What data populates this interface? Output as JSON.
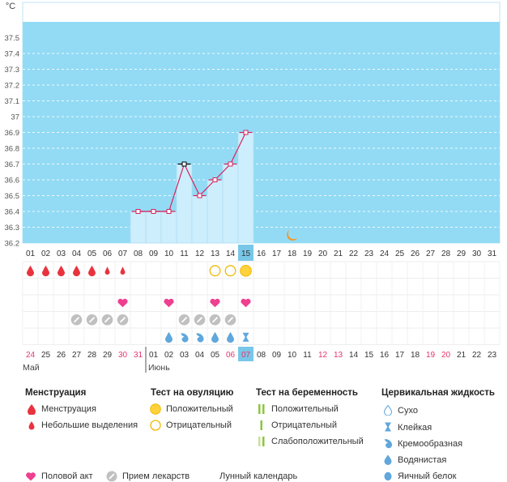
{
  "chart": {
    "unit_label": "°C",
    "y_ticks": [
      "37.5",
      "37.4",
      "37.3",
      "37.2",
      "37.1",
      "37",
      "36.9",
      "36.8",
      "36.7",
      "36.6",
      "36.5",
      "36.4",
      "36.3",
      "36.2"
    ],
    "ylim": [
      36.2,
      37.6
    ],
    "colors": {
      "background": "#93dbf5",
      "bar": "#cdeefc",
      "line": "#d6235d",
      "highlight": "#79c7e8",
      "pink": "#e8336b"
    }
  },
  "cycle_days": [
    "01",
    "02",
    "03",
    "04",
    "05",
    "06",
    "07",
    "08",
    "09",
    "10",
    "11",
    "12",
    "13",
    "14",
    "15",
    "16",
    "17",
    "18",
    "19",
    "20",
    "21",
    "22",
    "23",
    "24",
    "25",
    "26",
    "27",
    "28",
    "29",
    "30",
    "31"
  ],
  "today_index": 14,
  "calendar_days": [
    "24",
    "25",
    "26",
    "27",
    "28",
    "29",
    "30",
    "31",
    "01",
    "02",
    "03",
    "04",
    "05",
    "06",
    "07",
    "08",
    "09",
    "10",
    "11",
    "12",
    "13",
    "14",
    "15",
    "16",
    "17",
    "18",
    "19",
    "20",
    "21",
    "22",
    "23"
  ],
  "calendar_red": [
    0,
    6,
    7,
    13,
    14,
    19,
    20,
    26,
    27
  ],
  "months": [
    "Май",
    "Июнь"
  ],
  "chart_data": {
    "type": "line",
    "x": [
      "01",
      "02",
      "03",
      "04",
      "05",
      "06",
      "07",
      "08",
      "09",
      "10",
      "11",
      "12",
      "13",
      "14",
      "15"
    ],
    "y": [
      null,
      null,
      null,
      null,
      null,
      null,
      null,
      36.4,
      36.4,
      36.4,
      36.7,
      36.5,
      36.6,
      36.7,
      36.9
    ],
    "ylim": [
      36.2,
      37.6
    ]
  },
  "moon_index": 17,
  "marks": {
    "menstruation": [
      [
        "drop",
        0
      ],
      [
        "drop",
        1
      ],
      [
        "drop",
        2
      ],
      [
        "drop",
        3
      ],
      [
        "drop",
        4
      ],
      [
        "small",
        5
      ],
      [
        "small",
        6
      ]
    ],
    "ovulation": [
      [
        "neg",
        12
      ],
      [
        "neg",
        13
      ],
      [
        "pos",
        14
      ]
    ],
    "intercourse": [
      6,
      9,
      12,
      14
    ],
    "medicine": [
      3,
      4,
      5,
      6,
      10,
      11,
      12,
      13
    ],
    "cervical": [
      [
        "watery",
        9
      ],
      [
        "creamy",
        10
      ],
      [
        "creamy",
        11
      ],
      [
        "watery",
        12
      ],
      [
        "watery",
        13
      ],
      [
        "sticky",
        14
      ]
    ]
  },
  "legend": {
    "menstruation": {
      "title": "Менструация",
      "items": [
        "Менструация",
        "Небольшие выделения"
      ]
    },
    "ovulation": {
      "title": "Тест на овуляцию",
      "items": [
        "Положительный",
        "Отрицательный"
      ]
    },
    "pregnancy": {
      "title": "Тест на беременность",
      "items": [
        "Положительный",
        "Отрицательный",
        "Слабоположительный"
      ]
    },
    "cervical": {
      "title": "Цервикальная жидкость",
      "items": [
        "Сухо",
        "Клейкая",
        "Кремообразная",
        "Водянистая",
        "Яичный белок"
      ]
    },
    "bottom": [
      "Половой акт",
      "Прием лекарств",
      "Лунный календарь"
    ]
  }
}
